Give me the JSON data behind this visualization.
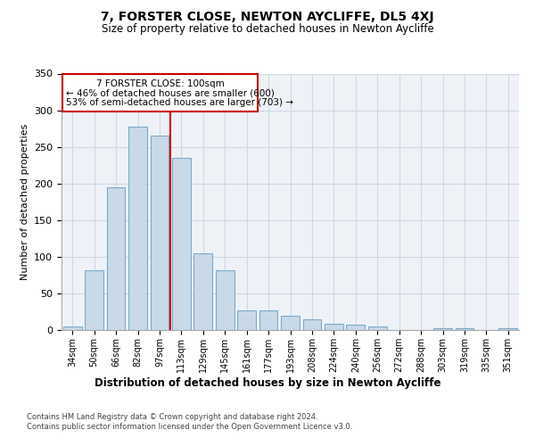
{
  "title": "7, FORSTER CLOSE, NEWTON AYCLIFFE, DL5 4XJ",
  "subtitle": "Size of property relative to detached houses in Newton Aycliffe",
  "xlabel": "Distribution of detached houses by size in Newton Aycliffe",
  "ylabel": "Number of detached properties",
  "categories": [
    "34sqm",
    "50sqm",
    "66sqm",
    "82sqm",
    "97sqm",
    "113sqm",
    "129sqm",
    "145sqm",
    "161sqm",
    "177sqm",
    "193sqm",
    "208sqm",
    "224sqm",
    "240sqm",
    "256sqm",
    "272sqm",
    "288sqm",
    "303sqm",
    "319sqm",
    "335sqm",
    "351sqm"
  ],
  "values": [
    5,
    82,
    195,
    278,
    265,
    235,
    105,
    82,
    27,
    27,
    20,
    15,
    9,
    7,
    5,
    0,
    0,
    3,
    2,
    0,
    3
  ],
  "bar_color": "#c9d9e8",
  "bar_edge_color": "#7aaac8",
  "red_line_x": 4.5,
  "annotation_line1": "7 FORSTER CLOSE: 100sqm",
  "annotation_line2": "← 46% of detached houses are smaller (600)",
  "annotation_line3": "53% of semi-detached houses are larger (703) →",
  "red_line_color": "#cc0000",
  "ylim": [
    0,
    350
  ],
  "yticks": [
    0,
    50,
    100,
    150,
    200,
    250,
    300,
    350
  ],
  "footer1": "Contains HM Land Registry data © Crown copyright and database right 2024.",
  "footer2": "Contains public sector information licensed under the Open Government Licence v3.0.",
  "bg_color": "#eef2f7",
  "grid_color": "#d0d8e4"
}
